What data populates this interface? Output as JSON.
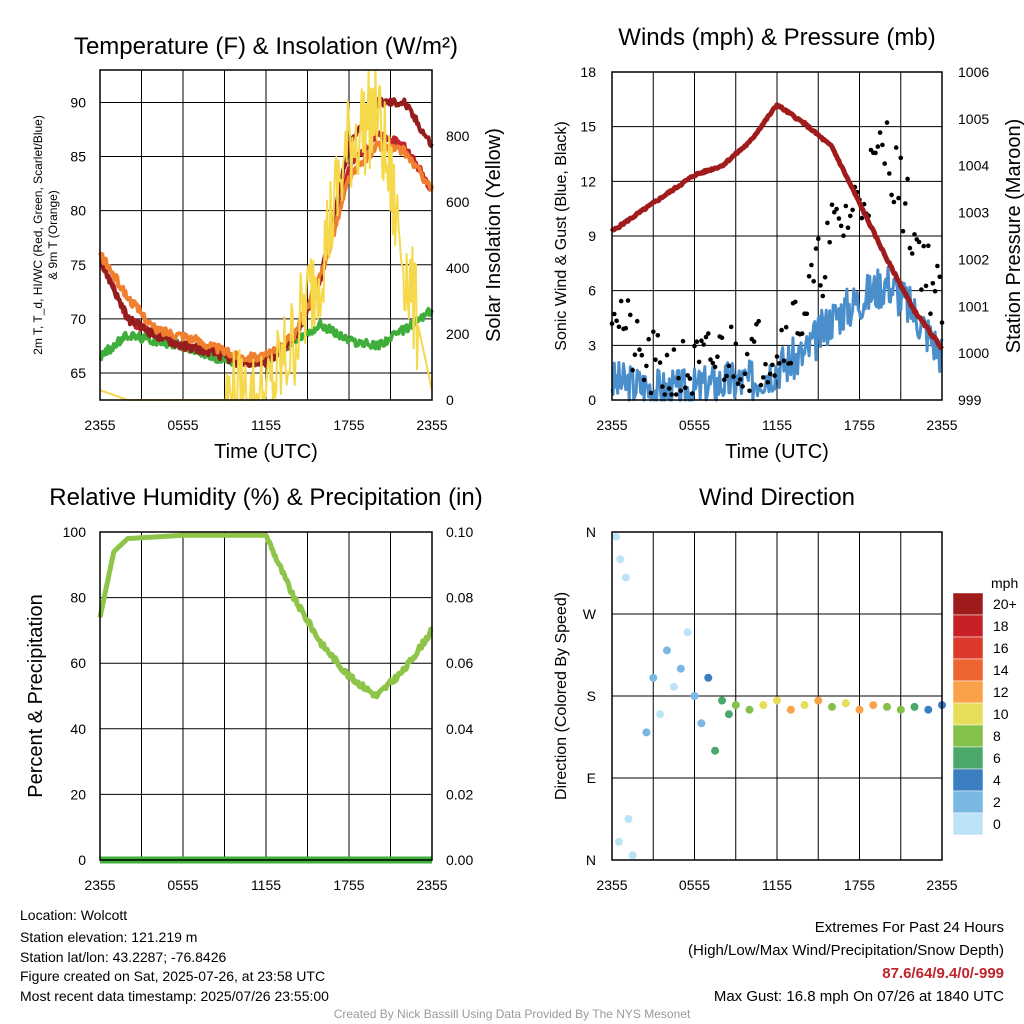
{
  "panels": {
    "temp": {
      "title": "Temperature (F) & Insolation (W/m²)",
      "ylabel_left": "2m T, T_d, HI/WC (Red, Green, Scarlet/Blue)",
      "ylabel_left2": "& 9m T (Orange)",
      "ylabel_right": "Solar Insolation (Yellow)",
      "xlabel": "Time (UTC)"
    },
    "wind": {
      "title": "Winds (mph) & Pressure (mb)",
      "ylabel_left": "Sonic Wind & Gust (Blue, Black)",
      "ylabel_right": "Station Pressure (Maroon)",
      "xlabel": "Time (UTC)"
    },
    "rh": {
      "title": "Relative Humidity (%) & Precipitation (in)",
      "ylabel_left": "Percent & Precipitation"
    },
    "wdir": {
      "title": "Wind Direction",
      "ylabel_left": "Direction (Colored By Speed)",
      "legend_title": "mph",
      "legend_labels": [
        "20+",
        "18",
        "16",
        "14",
        "12",
        "10",
        "8",
        "6",
        "4",
        "2",
        "0"
      ],
      "legend_colors": [
        "#9e1b1b",
        "#c62026",
        "#dc3a2c",
        "#ee6431",
        "#f9a24a",
        "#e6dd59",
        "#84c14b",
        "#4aa86a",
        "#3b7fc1",
        "#7ab7e3",
        "#bde3f7"
      ]
    }
  },
  "info": {
    "location": "Location: Wolcott",
    "elevation": "Station elevation: 121.219 m",
    "latlon": "Station lat/lon: 43.2287; -76.8426",
    "created": "Figure created on Sat, 2025-07-26, at 23:58 UTC",
    "recent": "Most recent data timestamp: 2025/07/26 23:55:00"
  },
  "extremes": {
    "title": "Extremes For Past 24 Hours",
    "subtitle": "(High/Low/Max Wind/Precipitation/Snow Depth)",
    "values": "87.6/64/9.4/0/-999",
    "gust": "Max Gust: 16.8 mph On 07/26 at 1840 UTC"
  },
  "credit": "Created By Nick Bassill Using Data Provided By The NYS Mesonet",
  "chart_data": [
    {
      "type": "line",
      "title": "Temperature (F) & Insolation (W/m²)",
      "xlabel": "Time (UTC)",
      "ylabel": "2m T, T_d, HI/WC (Red, Green, Scarlet/Blue) & 9m T (Orange)",
      "y2label": "Solar Insolation (Yellow)",
      "x_ticks": [
        "2355",
        "0555",
        "1155",
        "1755",
        "2355"
      ],
      "x": [
        0,
        2,
        4,
        6,
        8,
        10,
        12,
        14,
        16,
        18,
        20,
        22,
        24
      ],
      "ylim": [
        62.5,
        93
      ],
      "y_ticks": [
        65,
        70,
        75,
        80,
        85,
        90
      ],
      "y2lim": [
        0,
        1000
      ],
      "y2_ticks": [
        0,
        200,
        400,
        600,
        800
      ],
      "series": [
        {
          "name": "2m T",
          "color": "#c0242b",
          "axis": "left",
          "values": [
            75.5,
            70,
            68.5,
            67.5,
            67,
            66,
            66,
            68,
            74,
            84,
            87,
            86,
            82
          ]
        },
        {
          "name": "T_d",
          "color": "#3fae3a",
          "axis": "left",
          "values": [
            66.5,
            68.5,
            68,
            67.5,
            66.5,
            66,
            66,
            68,
            69.5,
            68,
            67.5,
            69,
            70.8
          ]
        },
        {
          "name": "HI/WC",
          "color": "#961d1d",
          "axis": "left",
          "values": [
            75.5,
            70,
            68.5,
            67.5,
            67,
            66,
            66,
            68,
            74,
            86,
            90,
            90,
            86
          ]
        },
        {
          "name": "9m T",
          "color": "#f08030",
          "axis": "left",
          "values": [
            76,
            72,
            69,
            68.5,
            67.5,
            66.5,
            66.5,
            68.5,
            74,
            83,
            86,
            85.5,
            82
          ]
        },
        {
          "name": "Solar Insolation",
          "color": "#f5d94a",
          "axis": "right",
          "values": [
            30,
            0,
            0,
            0,
            0,
            0,
            0,
            180,
            420,
            780,
            880,
            420,
            30
          ]
        }
      ]
    },
    {
      "type": "line",
      "title": "Winds (mph) & Pressure (mb)",
      "xlabel": "Time (UTC)",
      "ylabel": "Sonic Wind & Gust (Blue, Black)",
      "y2label": "Station Pressure (Maroon)",
      "x_ticks": [
        "2355",
        "0555",
        "1155",
        "1755",
        "2355"
      ],
      "x": [
        0,
        2,
        4,
        6,
        8,
        10,
        12,
        14,
        16,
        18,
        20,
        22,
        24
      ],
      "ylim": [
        0,
        18
      ],
      "y_ticks": [
        0,
        3,
        6,
        9,
        12,
        15,
        18
      ],
      "y2lim": [
        999,
        1006
      ],
      "y2_ticks": [
        999,
        1000,
        1001,
        1002,
        1003,
        1004,
        1005,
        1006
      ],
      "series": [
        {
          "name": "Sonic Wind",
          "color": "#4a8fcb",
          "axis": "left",
          "values": [
            1,
            0.8,
            0.5,
            0.6,
            1,
            1,
            1.8,
            2.5,
            4.5,
            5.5,
            6.5,
            4.8,
            2.5
          ]
        },
        {
          "name": "Gust",
          "color": "#000000",
          "axis": "left",
          "values": [
            6,
            2,
            1.5,
            1.5,
            2.5,
            2.5,
            3,
            5,
            9,
            11,
            14,
            9,
            5
          ]
        },
        {
          "name": "Station Pressure",
          "color": "#a01c1c",
          "axis": "right",
          "values": [
            1002.6,
            1003.0,
            1003.4,
            1003.8,
            1004.0,
            1004.5,
            1005.3,
            1004.9,
            1004.4,
            1003.2,
            1002.0,
            1000.9,
            1000.1
          ]
        }
      ]
    },
    {
      "type": "line",
      "title": "Relative Humidity (%) & Precipitation (in)",
      "ylabel": "Percent & Precipitation",
      "x_ticks": [
        "2355",
        "0555",
        "1155",
        "1755",
        "2355"
      ],
      "x": [
        0,
        1,
        2,
        4,
        6,
        8,
        10,
        12,
        14,
        16,
        18,
        20,
        22,
        24
      ],
      "ylim": [
        0,
        100
      ],
      "y_ticks": [
        0,
        20,
        40,
        60,
        80,
        100
      ],
      "y2lim": [
        0,
        0.1
      ],
      "y2_ticks": [
        0.0,
        0.02,
        0.04,
        0.06,
        0.08,
        0.1
      ],
      "series": [
        {
          "name": "Relative Humidity",
          "color": "#8ec548",
          "axis": "left",
          "values": [
            74,
            94,
            98,
            98.5,
            99,
            99,
            99,
            99,
            80,
            66,
            56,
            50,
            58,
            70
          ]
        },
        {
          "name": "Precipitation",
          "color": "#3fae3a",
          "axis": "right",
          "values": [
            0,
            0,
            0,
            0,
            0,
            0,
            0,
            0,
            0,
            0,
            0,
            0,
            0,
            0
          ]
        }
      ]
    },
    {
      "type": "scatter",
      "title": "Wind Direction",
      "ylabel": "Direction (Colored By Speed)",
      "x_ticks": [
        "2355",
        "0555",
        "1155",
        "1755",
        "2355"
      ],
      "y_ticks": [
        "N",
        "E",
        "S",
        "W",
        "N"
      ],
      "ylim": [
        0,
        360
      ],
      "colorbar": {
        "title": "mph",
        "labels": [
          "0",
          "2",
          "4",
          "6",
          "8",
          "10",
          "12",
          "14",
          "16",
          "18",
          "20+"
        ]
      },
      "points": [
        {
          "x": 0.3,
          "dir": 355,
          "speed": 0
        },
        {
          "x": 0.6,
          "dir": 330,
          "speed": 0
        },
        {
          "x": 1.0,
          "dir": 310,
          "speed": 0
        },
        {
          "x": 0.5,
          "dir": 20,
          "speed": 0
        },
        {
          "x": 1.2,
          "dir": 45,
          "speed": 0
        },
        {
          "x": 1.5,
          "dir": 5,
          "speed": 0
        },
        {
          "x": 2.5,
          "dir": 140,
          "speed": 1
        },
        {
          "x": 3.0,
          "dir": 200,
          "speed": 1
        },
        {
          "x": 3.5,
          "dir": 160,
          "speed": 0
        },
        {
          "x": 4.0,
          "dir": 230,
          "speed": 1
        },
        {
          "x": 4.5,
          "dir": 190,
          "speed": 0
        },
        {
          "x": 5.0,
          "dir": 210,
          "speed": 1
        },
        {
          "x": 5.5,
          "dir": 250,
          "speed": 0
        },
        {
          "x": 6.0,
          "dir": 180,
          "speed": 1
        },
        {
          "x": 6.5,
          "dir": 150,
          "speed": 1
        },
        {
          "x": 7.0,
          "dir": 200,
          "speed": 2
        },
        {
          "x": 7.5,
          "dir": 120,
          "speed": 3
        },
        {
          "x": 8.0,
          "dir": 175,
          "speed": 3
        },
        {
          "x": 8.5,
          "dir": 160,
          "speed": 3
        },
        {
          "x": 9.0,
          "dir": 170,
          "speed": 4
        },
        {
          "x": 10.0,
          "dir": 165,
          "speed": 4
        },
        {
          "x": 11.0,
          "dir": 170,
          "speed": 5
        },
        {
          "x": 12.0,
          "dir": 175,
          "speed": 5
        },
        {
          "x": 13.0,
          "dir": 165,
          "speed": 6
        },
        {
          "x": 14.0,
          "dir": 170,
          "speed": 5
        },
        {
          "x": 15.0,
          "dir": 175,
          "speed": 6
        },
        {
          "x": 16.0,
          "dir": 168,
          "speed": 4
        },
        {
          "x": 17.0,
          "dir": 172,
          "speed": 5
        },
        {
          "x": 18.0,
          "dir": 165,
          "speed": 6
        },
        {
          "x": 19.0,
          "dir": 170,
          "speed": 6
        },
        {
          "x": 20.0,
          "dir": 168,
          "speed": 4
        },
        {
          "x": 21.0,
          "dir": 165,
          "speed": 4
        },
        {
          "x": 22.0,
          "dir": 168,
          "speed": 3
        },
        {
          "x": 23.0,
          "dir": 165,
          "speed": 2
        },
        {
          "x": 24.0,
          "dir": 170,
          "speed": 2
        }
      ]
    }
  ]
}
